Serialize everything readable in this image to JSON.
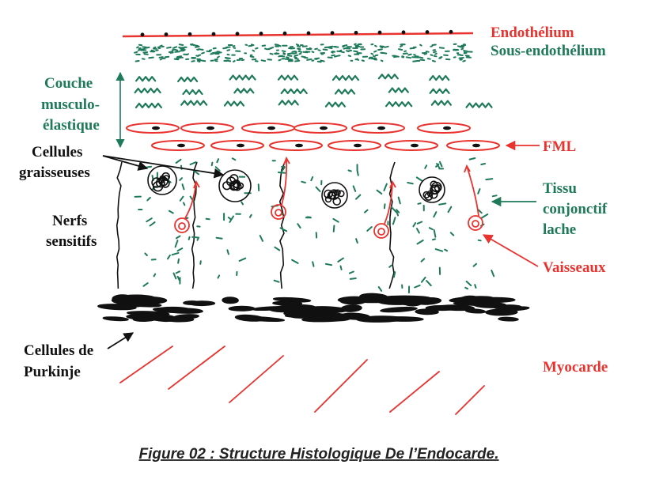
{
  "colors": {
    "red": "#e8332f",
    "green": "#1f7a5a",
    "black": "#111111",
    "caption": "#222222"
  },
  "labels": {
    "endothelium": "Endothélium",
    "subendothelium": "Sous-endothélium",
    "muscle_layer_1": "Couche",
    "muscle_layer_2": "musculo-",
    "muscle_layer_3": "élastique",
    "fml": "FML",
    "fat_cells_1": "Cellules",
    "fat_cells_2": "graisseuses",
    "loose_tissue_1": "Tissu",
    "loose_tissue_2": "conjonctif",
    "loose_tissue_3": "lache",
    "nerves_1": "Nerfs",
    "nerves_2": "sensitifs",
    "vessels": "Vaisseaux",
    "purkinje_1": "Cellules de",
    "purkinje_2": "Purkinje",
    "myocardium": "Myocarde"
  },
  "caption": "Figure 02 : Structure Histologique De l’Endocarde."
}
